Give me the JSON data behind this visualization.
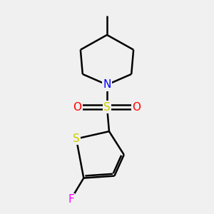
{
  "background_color": "#f0f0f0",
  "bond_color": "#000000",
  "line_width": 1.8,
  "atom_colors": {
    "N": "#0000ff",
    "S_sulfonyl": "#cccc00",
    "S_thio": "#cccc00",
    "O": "#ff0000",
    "F": "#ff00ff",
    "C": "#000000"
  },
  "font_size": 11,
  "fig_size": [
    3.0,
    3.0
  ],
  "dpi": 100,
  "bg_hex": "#f0f0f0"
}
